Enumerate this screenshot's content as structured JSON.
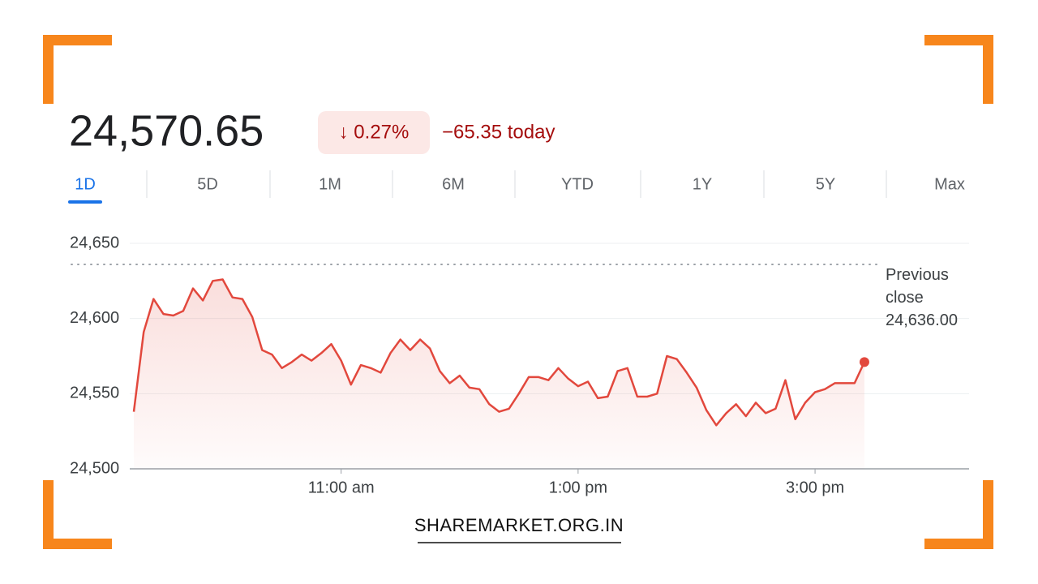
{
  "chart_data": {
    "type": "line",
    "price": "24,570.65",
    "change_percent": "↓ 0.27%",
    "change_today": "−65.35 today",
    "ranges": [
      "1D",
      "5D",
      "1M",
      "6M",
      "YTD",
      "1Y",
      "5Y",
      "Max"
    ],
    "selected_range": "1D",
    "color": "#e2483d",
    "x": [
      555,
      560,
      565,
      570,
      575,
      580,
      585,
      590,
      595,
      600,
      605,
      610,
      615,
      620,
      625,
      630,
      635,
      640,
      645,
      650,
      655,
      660,
      665,
      670,
      675,
      680,
      685,
      690,
      695,
      700,
      705,
      710,
      715,
      720,
      725,
      730,
      735,
      740,
      745,
      750,
      755,
      760,
      765,
      770,
      775,
      780,
      785,
      790,
      795,
      800,
      805,
      810,
      815,
      820,
      825,
      830,
      835,
      840,
      845,
      850,
      855,
      860,
      865,
      870,
      875,
      880,
      885,
      890,
      895,
      900,
      905,
      910,
      915,
      920,
      925
    ],
    "values": [
      24538,
      24591,
      24613,
      24603,
      24602,
      24605,
      24620,
      24612,
      24625,
      24626,
      24614,
      24613,
      24601,
      24579,
      24576,
      24567,
      24571,
      24576,
      24572,
      24577,
      24583,
      24572,
      24556,
      24569,
      24567,
      24564,
      24577,
      24586,
      24579,
      24586,
      24580,
      24565,
      24557,
      24562,
      24554,
      24553,
      24543,
      24538,
      24540,
      24550,
      24561,
      24561,
      24559,
      24567,
      24560,
      24555,
      24558,
      24547,
      24548,
      24565,
      24567,
      24548,
      24548,
      24550,
      24575,
      24573,
      24564,
      24554,
      24539,
      24529,
      24537,
      24543,
      24535,
      24544,
      24537,
      24540,
      24559,
      24533,
      24544,
      24551,
      24553,
      24557,
      24557,
      24557,
      24571
    ],
    "xlim": [
      555,
      978
    ],
    "xticks": [
      {
        "value": 660,
        "label": "11:00 am"
      },
      {
        "value": 780,
        "label": "1:00 pm"
      },
      {
        "value": 900,
        "label": "3:00 pm"
      }
    ],
    "ylim": [
      24500,
      24650
    ],
    "yticks": [
      {
        "value": 24500,
        "label": "24,500"
      },
      {
        "value": 24550,
        "label": "24,550"
      },
      {
        "value": 24600,
        "label": "24,600"
      },
      {
        "value": 24650,
        "label": "24,650"
      }
    ],
    "grid": true,
    "previous_close": {
      "label": "Previous close",
      "value": 24636,
      "value_label": "24,636.00"
    },
    "watermark": "SHAREMARKET.ORG.IN"
  }
}
